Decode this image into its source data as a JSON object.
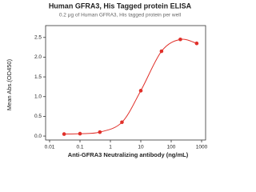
{
  "chart_data": {
    "type": "line",
    "title": "Human GFRA3, His Tagged protein ELISA",
    "subtitle": "0.2 μg of Human GFRA3, His tagged protein per well",
    "x_label": "Anti-GFRA3 Neutralizing antibody (ng/mL)",
    "y_label": "Mean Abs.(OD450)",
    "x_log": true,
    "xlim": [
      0.01,
      1000
    ],
    "xticks": [
      0.01,
      0.1,
      1,
      10,
      100,
      1000
    ],
    "ylim": [
      -0.1,
      2.8
    ],
    "yticks": [
      {
        "value": 0,
        "label": "0.0"
      },
      0.5,
      {
        "value": 1,
        "label": "1.0"
      },
      1.5,
      {
        "value": 2,
        "label": "2.0"
      },
      2.5
    ],
    "series": [
      {
        "color": "#e0302a",
        "x": [
          0.03,
          0.1,
          0.45,
          2.4,
          10,
          48,
          200,
          690
        ],
        "values": [
          0.05,
          0.06,
          0.1,
          0.35,
          1.15,
          2.15,
          2.45,
          2.35
        ]
      }
    ]
  }
}
